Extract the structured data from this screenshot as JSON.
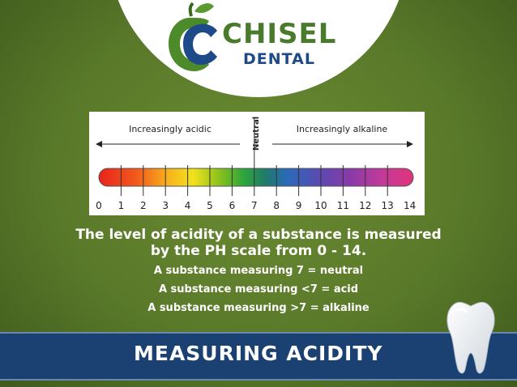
{
  "logo": {
    "name": "CHISEL",
    "sub": "DENTAL"
  },
  "scale": {
    "left_label": "Increasingly acidic",
    "right_label": "Increasingly alkaline",
    "neutral_label": "Neutral",
    "numbers": [
      "0",
      "1",
      "2",
      "3",
      "4",
      "5",
      "6",
      "7",
      "8",
      "9",
      "10",
      "11",
      "12",
      "13",
      "14"
    ]
  },
  "description": {
    "main_line1": "The level of acidity of a substance is measured",
    "main_line2": "by the PH scale from 0 - 14.",
    "line_neutral": "A substance measuring 7 = neutral",
    "line_acid": "A substance measuring <7 = acid",
    "line_alkaline": "A substance measuring >7 = alkaline"
  },
  "banner": {
    "title": "MEASURING ACIDITY"
  },
  "icons": {
    "logo": "chisel-apple-logo-icon",
    "tooth": "tooth-icon"
  },
  "colors": {
    "background": "#5a7a2a",
    "banner": "#1b4173",
    "logo_green": "#4a7a2c",
    "logo_blue": "#1e4a8a"
  }
}
